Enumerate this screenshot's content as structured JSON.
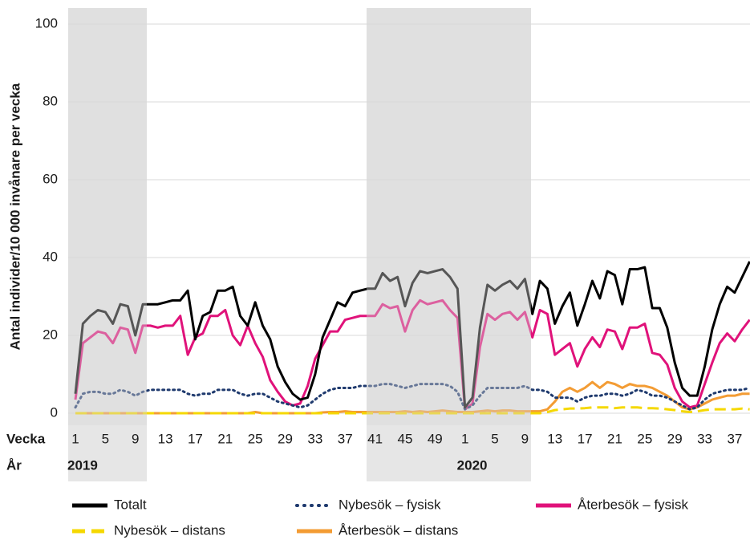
{
  "chart_data": {
    "type": "line",
    "y_label": "Antal individer/10 000 invånare per vecka",
    "week_row_label": "Vecka",
    "year_row_label": "År",
    "ylim": [
      0,
      100
    ],
    "yticks": [
      0,
      20,
      40,
      60,
      80,
      100
    ],
    "grid": true,
    "categories": [
      "1",
      null,
      null,
      null,
      "5",
      null,
      null,
      null,
      "9",
      null,
      null,
      null,
      "13",
      null,
      null,
      null,
      "17",
      null,
      null,
      null,
      "21",
      null,
      null,
      null,
      "25",
      null,
      null,
      null,
      "29",
      null,
      null,
      null,
      "33",
      null,
      null,
      null,
      "37",
      null,
      null,
      null,
      "41",
      null,
      null,
      null,
      "45",
      null,
      null,
      null,
      "49",
      null,
      null,
      null,
      "1",
      null,
      null,
      null,
      "5",
      null,
      null,
      null,
      "9",
      null,
      null,
      null,
      "13",
      null,
      null,
      null,
      "17",
      null,
      null,
      null,
      "21",
      null,
      null,
      null,
      "25",
      null,
      null,
      null,
      "29",
      null,
      null,
      null,
      "33",
      null,
      null,
      null,
      "37",
      null,
      null
    ],
    "years": [
      "2019",
      null,
      null,
      null,
      null,
      null,
      null,
      null,
      null,
      null,
      null,
      null,
      null,
      null,
      null,
      null,
      null,
      null,
      null,
      null,
      null,
      null,
      null,
      null,
      null,
      null,
      null,
      null,
      null,
      null,
      null,
      null,
      null,
      null,
      null,
      null,
      null,
      null,
      null,
      null,
      null,
      null,
      null,
      null,
      null,
      null,
      null,
      null,
      null,
      null,
      null,
      null,
      "2020",
      null,
      null,
      null,
      null,
      null,
      null,
      null,
      null,
      null,
      null,
      null,
      null,
      null,
      null,
      null,
      null,
      null,
      null,
      null,
      null,
      null,
      null,
      null,
      null,
      null,
      null,
      null,
      null,
      null,
      null,
      null,
      null,
      null,
      null,
      null,
      null,
      null,
      null
    ],
    "legend_position": "bottom",
    "series": [
      {
        "name": "Totalt",
        "color": "#000000",
        "style": "solid",
        "values": [
          5,
          23,
          25,
          26.5,
          26,
          23,
          28,
          27.5,
          20,
          28,
          28,
          28,
          28.5,
          29,
          29,
          31.5,
          19,
          25,
          26,
          31.5,
          31.5,
          32.5,
          25,
          22.5,
          28.5,
          22.5,
          19,
          12,
          8,
          5,
          3.5,
          4,
          10,
          19.5,
          24,
          28.5,
          27.5,
          31,
          31.5,
          32,
          32,
          36,
          34,
          35,
          27.5,
          33.5,
          36.5,
          36,
          36.5,
          37,
          35,
          32,
          1.5,
          4,
          22,
          33,
          31.5,
          33,
          34,
          32,
          34.5,
          25.5,
          34,
          32,
          23,
          27.5,
          31,
          22.5,
          28,
          34,
          29.5,
          36.5,
          35.5,
          28,
          37,
          37,
          37.5,
          27,
          27,
          22,
          13,
          6.5,
          4.5,
          4.5,
          12,
          21.5,
          28,
          32.5,
          31,
          35,
          39
        ]
      },
      {
        "name": "Nybesök – fysisk",
        "color": "#1f3a6e",
        "style": "dotted",
        "values": [
          1.5,
          5,
          5.5,
          5.5,
          5,
          5,
          6,
          5.5,
          4.5,
          5.5,
          6,
          6,
          6,
          6,
          6,
          5,
          4.5,
          5,
          5,
          6,
          6,
          6,
          5,
          4.5,
          5,
          5,
          4,
          3,
          2.5,
          2,
          1.5,
          2,
          3.5,
          5,
          6,
          6.5,
          6.5,
          6.5,
          7,
          7,
          7,
          7.5,
          7.5,
          7,
          6.5,
          7,
          7.5,
          7.5,
          7.5,
          7.5,
          7,
          5.5,
          1,
          2,
          4.5,
          6.5,
          6.5,
          6.5,
          6.5,
          6.5,
          7,
          6,
          6,
          5.5,
          4,
          4,
          4,
          3,
          4,
          4.5,
          4.5,
          5,
          5,
          4.5,
          5,
          6,
          5.5,
          4.5,
          4.5,
          4,
          3,
          2,
          1,
          1.5,
          3.5,
          5,
          5.5,
          6,
          6,
          6,
          6.5
        ]
      },
      {
        "name": "Återbesök – fysisk",
        "color": "#e0127a",
        "style": "solid",
        "values": [
          3.5,
          18,
          19.5,
          21,
          20.5,
          18,
          22,
          21.5,
          15.5,
          22.5,
          22.5,
          22,
          22.5,
          22.5,
          25,
          15,
          19.5,
          20.5,
          25,
          25,
          26.5,
          20,
          17.5,
          22.5,
          18,
          14.5,
          8.5,
          5.5,
          3,
          2,
          2.5,
          7,
          14,
          17.5,
          21,
          21,
          24,
          24.5,
          25,
          25,
          25,
          28,
          27,
          27.5,
          21,
          26.5,
          29,
          28,
          28.5,
          29,
          26.5,
          24.5,
          1,
          2.5,
          17,
          25.5,
          24,
          25.5,
          26,
          24,
          26,
          19.5,
          26.5,
          25.5,
          15,
          16.5,
          18,
          12,
          16.5,
          19.5,
          17,
          21.5,
          21,
          16.5,
          22,
          22,
          23,
          15.5,
          15,
          12.5,
          6.5,
          3,
          1.5,
          2,
          7.5,
          13,
          18,
          20.5,
          18.5,
          21.5,
          24
        ]
      },
      {
        "name": "Nybesök – distans",
        "color": "#f5d800",
        "style": "dashed",
        "values": [
          0,
          0,
          0,
          0,
          0,
          0,
          0,
          0,
          0,
          0,
          0,
          0,
          0,
          0,
          0,
          0,
          0,
          0,
          0,
          0,
          0,
          0,
          0,
          0,
          0,
          0,
          0,
          0,
          0,
          0,
          0,
          0,
          0,
          0,
          0,
          0,
          0,
          0,
          0,
          0,
          0,
          0,
          0,
          0,
          0,
          0,
          0,
          0,
          0,
          0,
          0,
          0,
          0,
          0,
          0,
          0,
          0,
          0,
          0,
          0,
          0,
          0,
          0,
          0.3,
          0.8,
          1,
          1.2,
          1.2,
          1.3,
          1.5,
          1.5,
          1.5,
          1.3,
          1.5,
          1.5,
          1.5,
          1.3,
          1.3,
          1.2,
          1,
          0.8,
          0.5,
          0.3,
          0.5,
          0.8,
          1,
          1,
          1,
          1,
          1.2,
          1
        ]
      },
      {
        "name": "Återbesök – distans",
        "color": "#f39c34",
        "style": "solid",
        "values": [
          0,
          0,
          0,
          0,
          0,
          0,
          0,
          0,
          0,
          0,
          0,
          0,
          0,
          0,
          0,
          0,
          0,
          0,
          0,
          0,
          0,
          0,
          0,
          0,
          0.3,
          0,
          0,
          0,
          0,
          0,
          0,
          0,
          0,
          0.2,
          0.3,
          0.3,
          0.5,
          0.3,
          0.3,
          0.3,
          0.3,
          0.3,
          0.3,
          0.3,
          0.5,
          0.3,
          0.5,
          0.3,
          0.5,
          0.7,
          0.5,
          0.3,
          0.3,
          0.3,
          0.5,
          0.7,
          0.5,
          0.7,
          0.7,
          0.5,
          0.5,
          0.5,
          0.5,
          1,
          3,
          5.5,
          6.5,
          5.5,
          6.5,
          8,
          6.5,
          8,
          7.5,
          6.5,
          7.5,
          7,
          7,
          6.5,
          5.5,
          4.5,
          3,
          1.5,
          1,
          1.5,
          2.5,
          3.5,
          4,
          4.5,
          4.5,
          5,
          5
        ]
      }
    ]
  }
}
